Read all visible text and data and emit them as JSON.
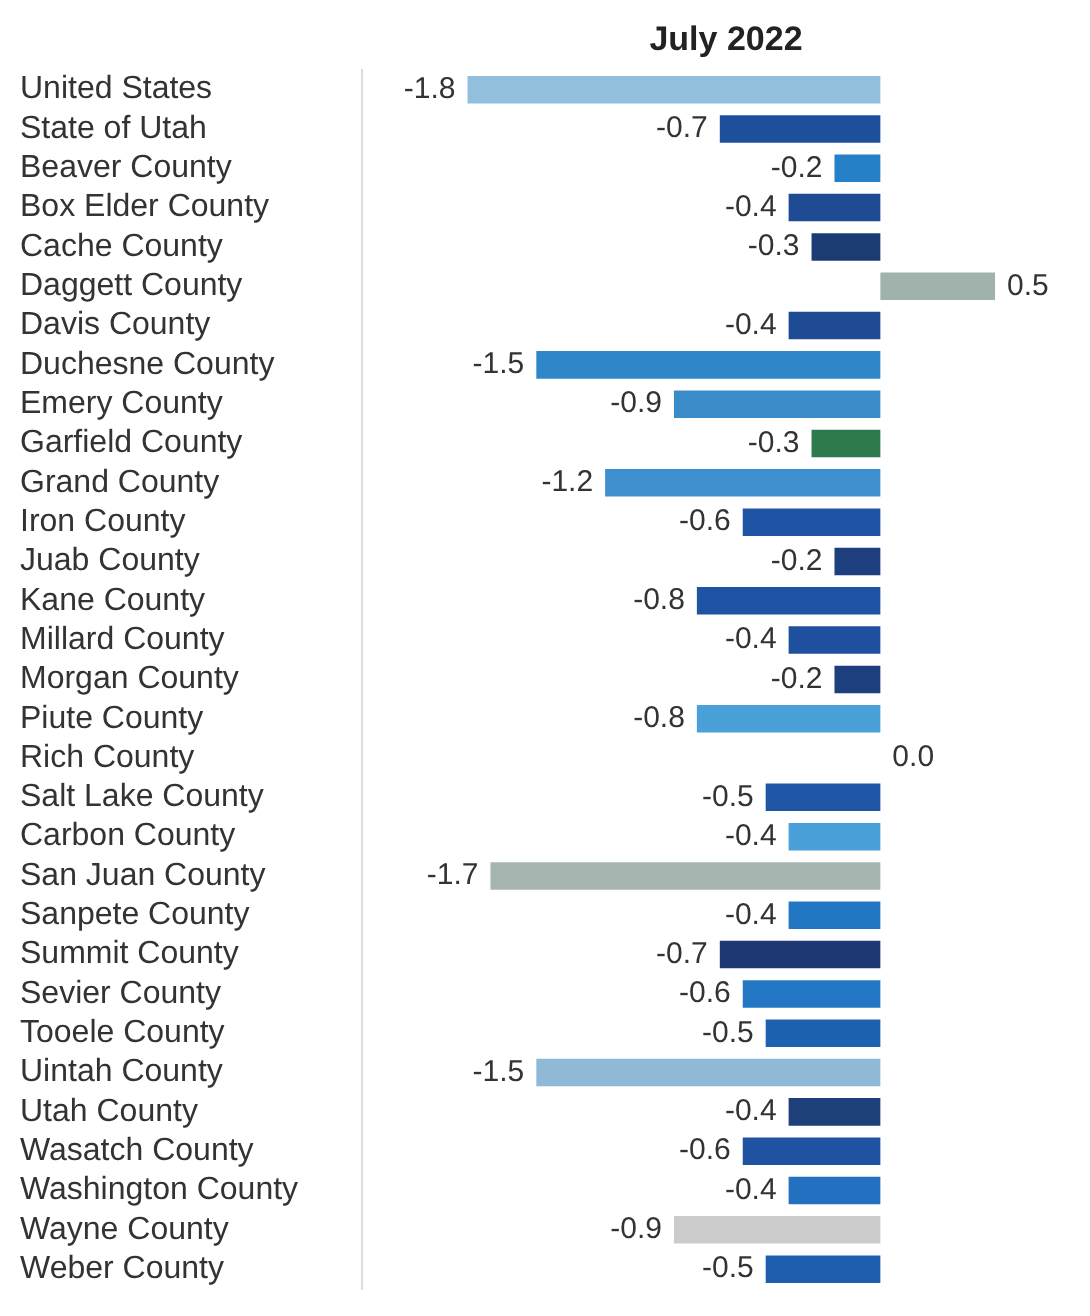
{
  "chart_data": {
    "type": "bar",
    "orientation": "horizontal",
    "title": "July 2022",
    "categories": [
      "United States",
      "State of Utah",
      "Beaver County",
      "Box Elder County",
      "Cache County",
      "Daggett County",
      "Davis County",
      "Duchesne County",
      "Emery County",
      "Garfield County",
      "Grand County",
      "Iron County",
      "Juab County",
      "Kane County",
      "Millard County",
      "Morgan County",
      "Piute County",
      "Rich County",
      "Salt Lake County",
      "Carbon County",
      "San Juan County",
      "Sanpete County",
      "Summit County",
      "Sevier County",
      "Tooele County",
      "Uintah County",
      "Utah County",
      "Wasatch County",
      "Washington County",
      "Wayne County",
      "Weber County"
    ],
    "values": [
      -1.8,
      -0.7,
      -0.2,
      -0.4,
      -0.3,
      0.5,
      -0.4,
      -1.5,
      -0.9,
      -0.3,
      -1.2,
      -0.6,
      -0.2,
      -0.8,
      -0.4,
      -0.2,
      -0.8,
      0.0,
      -0.5,
      -0.4,
      -1.7,
      -0.4,
      -0.7,
      -0.6,
      -0.5,
      -1.5,
      -0.4,
      -0.6,
      -0.4,
      -0.9,
      -0.5
    ],
    "value_labels": [
      "-1.8",
      "-0.7",
      "-0.2",
      "-0.4",
      "-0.3",
      "0.5",
      "-0.4",
      "-1.5",
      "-0.9",
      "-0.3",
      "-1.2",
      "-0.6",
      "-0.2",
      "-0.8",
      "-0.4",
      "-0.2",
      "-0.8",
      "0.0",
      "-0.5",
      "-0.4",
      "-1.7",
      "-0.4",
      "-0.7",
      "-0.6",
      "-0.5",
      "-1.5",
      "-0.4",
      "-0.6",
      "-0.4",
      "-0.9",
      "-0.5"
    ],
    "colors": [
      "#92bfdc",
      "#1e4f9c",
      "#2680c8",
      "#1f4b95",
      "#1d3b73",
      "#9fb3ac",
      "#1f4b95",
      "#2f86c9",
      "#3a8cc8",
      "#2e7a4e",
      "#3d8fd0",
      "#1f53a3",
      "#1d3f7e",
      "#1f53a3",
      "#1f4f9f",
      "#1d3f7e",
      "#4aa0d8",
      "#2a7bc4",
      "#1f55a5",
      "#4aa0d8",
      "#a6b5b0",
      "#2277c2",
      "#1d3875",
      "#2477c4",
      "#1d62b0",
      "#8fb9d6",
      "#1d3f7a",
      "#1f52a0",
      "#2470c0",
      "#cbcbcb",
      "#1d5eae"
    ]
  }
}
